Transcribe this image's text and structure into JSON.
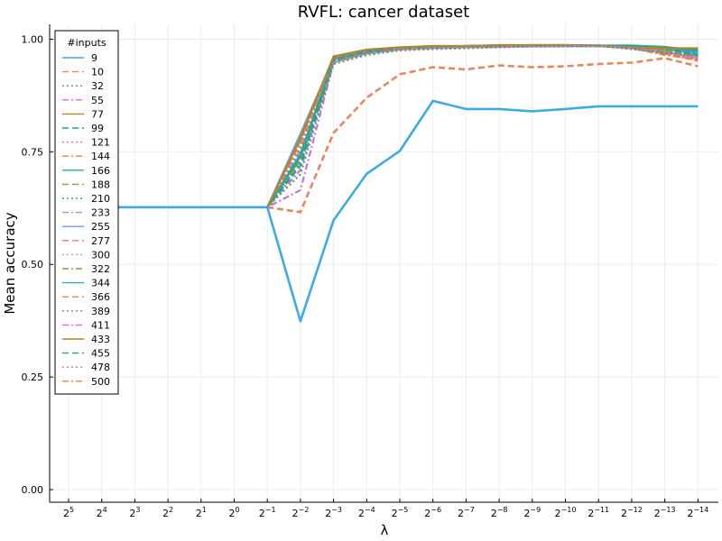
{
  "chart_data": {
    "type": "line",
    "title": "RVFL: cancer dataset",
    "xlabel": "λ",
    "ylabel": "Mean accuracy",
    "x_tick_base": "2",
    "x_tick_exponents": [
      "5",
      "4",
      "3",
      "2",
      "1",
      "0",
      "−1",
      "−2",
      "−3",
      "−4",
      "−5",
      "−6",
      "−7",
      "−8",
      "−9",
      "−10",
      "−11",
      "−12",
      "−13",
      "−14"
    ],
    "y_ticks": [
      "0.00",
      "0.25",
      "0.50",
      "0.75",
      "1.00"
    ],
    "ylim": [
      -0.028,
      1.033
    ],
    "grid": true,
    "legend": {
      "title": "#inputs",
      "placement": "top-left"
    },
    "series": [
      {
        "name": "9",
        "color": "#3da9e8",
        "dash": "solid",
        "width": 2.6,
        "values": [
          0.627,
          0.627,
          0.627,
          0.627,
          0.627,
          0.627,
          0.627,
          0.374,
          0.598,
          0.701,
          0.752,
          0.863,
          0.845,
          0.845,
          0.84,
          0.845,
          0.851,
          0.851,
          0.851,
          0.851
        ]
      },
      {
        "name": "10",
        "color": "#e8855f",
        "dash": "dash",
        "width": 2.6,
        "values": [
          0.627,
          0.627,
          0.627,
          0.627,
          0.627,
          0.627,
          0.627,
          0.616,
          0.792,
          0.87,
          0.922,
          0.938,
          0.933,
          0.942,
          0.938,
          0.94,
          0.945,
          0.948,
          0.958,
          0.94
        ]
      },
      {
        "name": "32",
        "color": "#3caa61",
        "dash": "dot",
        "width": 2.2,
        "values": [
          0.627,
          0.627,
          0.627,
          0.627,
          0.627,
          0.627,
          0.627,
          0.7,
          0.945,
          0.965,
          0.975,
          0.978,
          0.98,
          0.982,
          0.984,
          0.984,
          0.985,
          0.978,
          0.97,
          0.965
        ]
      },
      {
        "name": "55",
        "color": "#cf6fd9",
        "dash": "dashdot",
        "width": 2.2,
        "values": [
          0.627,
          0.627,
          0.627,
          0.627,
          0.627,
          0.627,
          0.627,
          0.665,
          0.948,
          0.968,
          0.977,
          0.98,
          0.982,
          0.983,
          0.984,
          0.985,
          0.985,
          0.98,
          0.972,
          0.958
        ]
      },
      {
        "name": "77",
        "color": "#a88a28",
        "dash": "solid",
        "width": 2.2,
        "values": [
          0.627,
          0.627,
          0.627,
          0.627,
          0.627,
          0.627,
          0.627,
          0.78,
          0.962,
          0.977,
          0.982,
          0.985,
          0.985,
          0.987,
          0.987,
          0.987,
          0.986,
          0.982,
          0.98,
          0.98
        ]
      },
      {
        "name": "99",
        "color": "#1f9ea5",
        "dash": "dash",
        "width": 2.2,
        "values": [
          0.627,
          0.627,
          0.627,
          0.627,
          0.627,
          0.627,
          0.627,
          0.72,
          0.955,
          0.972,
          0.98,
          0.983,
          0.984,
          0.985,
          0.985,
          0.985,
          0.985,
          0.985,
          0.98,
          0.965
        ]
      },
      {
        "name": "121",
        "color": "#ef6b75",
        "dash": "dot",
        "width": 2.2,
        "values": [
          0.627,
          0.627,
          0.627,
          0.627,
          0.627,
          0.627,
          0.627,
          0.76,
          0.958,
          0.974,
          0.98,
          0.983,
          0.984,
          0.985,
          0.986,
          0.986,
          0.985,
          0.98,
          0.97,
          0.955
        ]
      },
      {
        "name": "144",
        "color": "#d78a3c",
        "dash": "dashdot",
        "width": 2.2,
        "values": [
          0.627,
          0.627,
          0.627,
          0.627,
          0.627,
          0.627,
          0.627,
          0.77,
          0.96,
          0.975,
          0.981,
          0.984,
          0.985,
          0.986,
          0.986,
          0.986,
          0.985,
          0.98,
          0.965,
          0.955
        ]
      },
      {
        "name": "166",
        "color": "#28a98f",
        "dash": "solid",
        "width": 2.2,
        "values": [
          0.627,
          0.627,
          0.627,
          0.627,
          0.627,
          0.627,
          0.627,
          0.74,
          0.957,
          0.973,
          0.98,
          0.983,
          0.984,
          0.985,
          0.985,
          0.986,
          0.986,
          0.986,
          0.983,
          0.975
        ]
      },
      {
        "name": "188",
        "color": "#909a3c",
        "dash": "dash",
        "width": 2.2,
        "values": [
          0.627,
          0.627,
          0.627,
          0.627,
          0.627,
          0.627,
          0.627,
          0.73,
          0.952,
          0.97,
          0.978,
          0.982,
          0.983,
          0.984,
          0.985,
          0.985,
          0.985,
          0.983,
          0.975,
          0.962
        ]
      },
      {
        "name": "210",
        "color": "#29a8b5",
        "dash": "dot",
        "width": 2.2,
        "values": [
          0.627,
          0.627,
          0.627,
          0.627,
          0.627,
          0.627,
          0.627,
          0.75,
          0.954,
          0.971,
          0.979,
          0.982,
          0.983,
          0.984,
          0.985,
          0.985,
          0.985,
          0.984,
          0.978,
          0.97
        ]
      },
      {
        "name": "233",
        "color": "#a88ae6",
        "dash": "dashdot",
        "width": 2.2,
        "values": [
          0.627,
          0.627,
          0.627,
          0.627,
          0.627,
          0.627,
          0.627,
          0.755,
          0.955,
          0.972,
          0.979,
          0.982,
          0.983,
          0.984,
          0.985,
          0.985,
          0.985,
          0.982,
          0.975,
          0.965
        ]
      },
      {
        "name": "255",
        "color": "#6c9ee8",
        "dash": "solid",
        "width": 2.2,
        "values": [
          0.627,
          0.627,
          0.627,
          0.627,
          0.627,
          0.627,
          0.627,
          0.79,
          0.958,
          0.974,
          0.98,
          0.983,
          0.984,
          0.985,
          0.985,
          0.986,
          0.985,
          0.983,
          0.978,
          0.968
        ]
      },
      {
        "name": "277",
        "color": "#ee7a7a",
        "dash": "dash",
        "width": 2.2,
        "values": [
          0.627,
          0.627,
          0.627,
          0.627,
          0.627,
          0.627,
          0.627,
          0.785,
          0.957,
          0.973,
          0.98,
          0.983,
          0.984,
          0.985,
          0.985,
          0.985,
          0.985,
          0.982,
          0.972,
          0.96
        ]
      },
      {
        "name": "300",
        "color": "#ea8fc7",
        "dash": "dot",
        "width": 2.2,
        "values": [
          0.627,
          0.627,
          0.627,
          0.627,
          0.627,
          0.627,
          0.627,
          0.765,
          0.955,
          0.972,
          0.979,
          0.982,
          0.983,
          0.984,
          0.985,
          0.985,
          0.985,
          0.981,
          0.97,
          0.958
        ]
      },
      {
        "name": "322",
        "color": "#7fa23d",
        "dash": "dashdot",
        "width": 2.2,
        "values": [
          0.627,
          0.627,
          0.627,
          0.627,
          0.627,
          0.627,
          0.627,
          0.735,
          0.953,
          0.971,
          0.979,
          0.982,
          0.983,
          0.984,
          0.985,
          0.985,
          0.985,
          0.983,
          0.976,
          0.962
        ]
      },
      {
        "name": "344",
        "color": "#2fa2d8",
        "dash": "solid",
        "width": 2.2,
        "values": [
          0.627,
          0.627,
          0.627,
          0.627,
          0.627,
          0.627,
          0.627,
          0.745,
          0.956,
          0.972,
          0.98,
          0.983,
          0.984,
          0.985,
          0.985,
          0.985,
          0.985,
          0.984,
          0.98,
          0.972
        ]
      },
      {
        "name": "366",
        "color": "#e08a55",
        "dash": "dash",
        "width": 2.2,
        "values": [
          0.627,
          0.627,
          0.627,
          0.627,
          0.627,
          0.627,
          0.627,
          0.775,
          0.958,
          0.974,
          0.981,
          0.984,
          0.985,
          0.986,
          0.986,
          0.986,
          0.985,
          0.98,
          0.968,
          0.952
        ]
      },
      {
        "name": "389",
        "color": "#4aa66a",
        "dash": "dot",
        "width": 2.2,
        "values": [
          0.627,
          0.627,
          0.627,
          0.627,
          0.627,
          0.627,
          0.627,
          0.725,
          0.95,
          0.969,
          0.978,
          0.981,
          0.983,
          0.984,
          0.985,
          0.985,
          0.985,
          0.982,
          0.974,
          0.96
        ]
      },
      {
        "name": "411",
        "color": "#c56fd2",
        "dash": "dashdot",
        "width": 2.2,
        "values": [
          0.627,
          0.627,
          0.627,
          0.627,
          0.627,
          0.627,
          0.627,
          0.71,
          0.95,
          0.969,
          0.978,
          0.981,
          0.983,
          0.984,
          0.985,
          0.985,
          0.985,
          0.982,
          0.972,
          0.958
        ]
      },
      {
        "name": "433",
        "color": "#a8872a",
        "dash": "solid",
        "width": 2.2,
        "values": [
          0.627,
          0.627,
          0.627,
          0.627,
          0.627,
          0.627,
          0.627,
          0.782,
          0.961,
          0.976,
          0.982,
          0.984,
          0.985,
          0.986,
          0.987,
          0.987,
          0.986,
          0.983,
          0.98,
          0.978
        ]
      },
      {
        "name": "455",
        "color": "#20a0a8",
        "dash": "dash",
        "width": 2.2,
        "values": [
          0.627,
          0.627,
          0.627,
          0.627,
          0.627,
          0.627,
          0.627,
          0.738,
          0.955,
          0.972,
          0.98,
          0.983,
          0.984,
          0.985,
          0.985,
          0.986,
          0.986,
          0.985,
          0.982,
          0.974
        ]
      },
      {
        "name": "478",
        "color": "#f07080",
        "dash": "dot",
        "width": 2.2,
        "values": [
          0.627,
          0.627,
          0.627,
          0.627,
          0.627,
          0.627,
          0.627,
          0.768,
          0.957,
          0.973,
          0.98,
          0.983,
          0.984,
          0.985,
          0.985,
          0.986,
          0.985,
          0.981,
          0.97,
          0.956
        ]
      },
      {
        "name": "500",
        "color": "#d28a40",
        "dash": "dashdot",
        "width": 2.2,
        "values": [
          0.627,
          0.627,
          0.627,
          0.627,
          0.627,
          0.627,
          0.627,
          0.772,
          0.959,
          0.975,
          0.981,
          0.984,
          0.985,
          0.986,
          0.986,
          0.986,
          0.985,
          0.981,
          0.968,
          0.954
        ]
      }
    ]
  }
}
